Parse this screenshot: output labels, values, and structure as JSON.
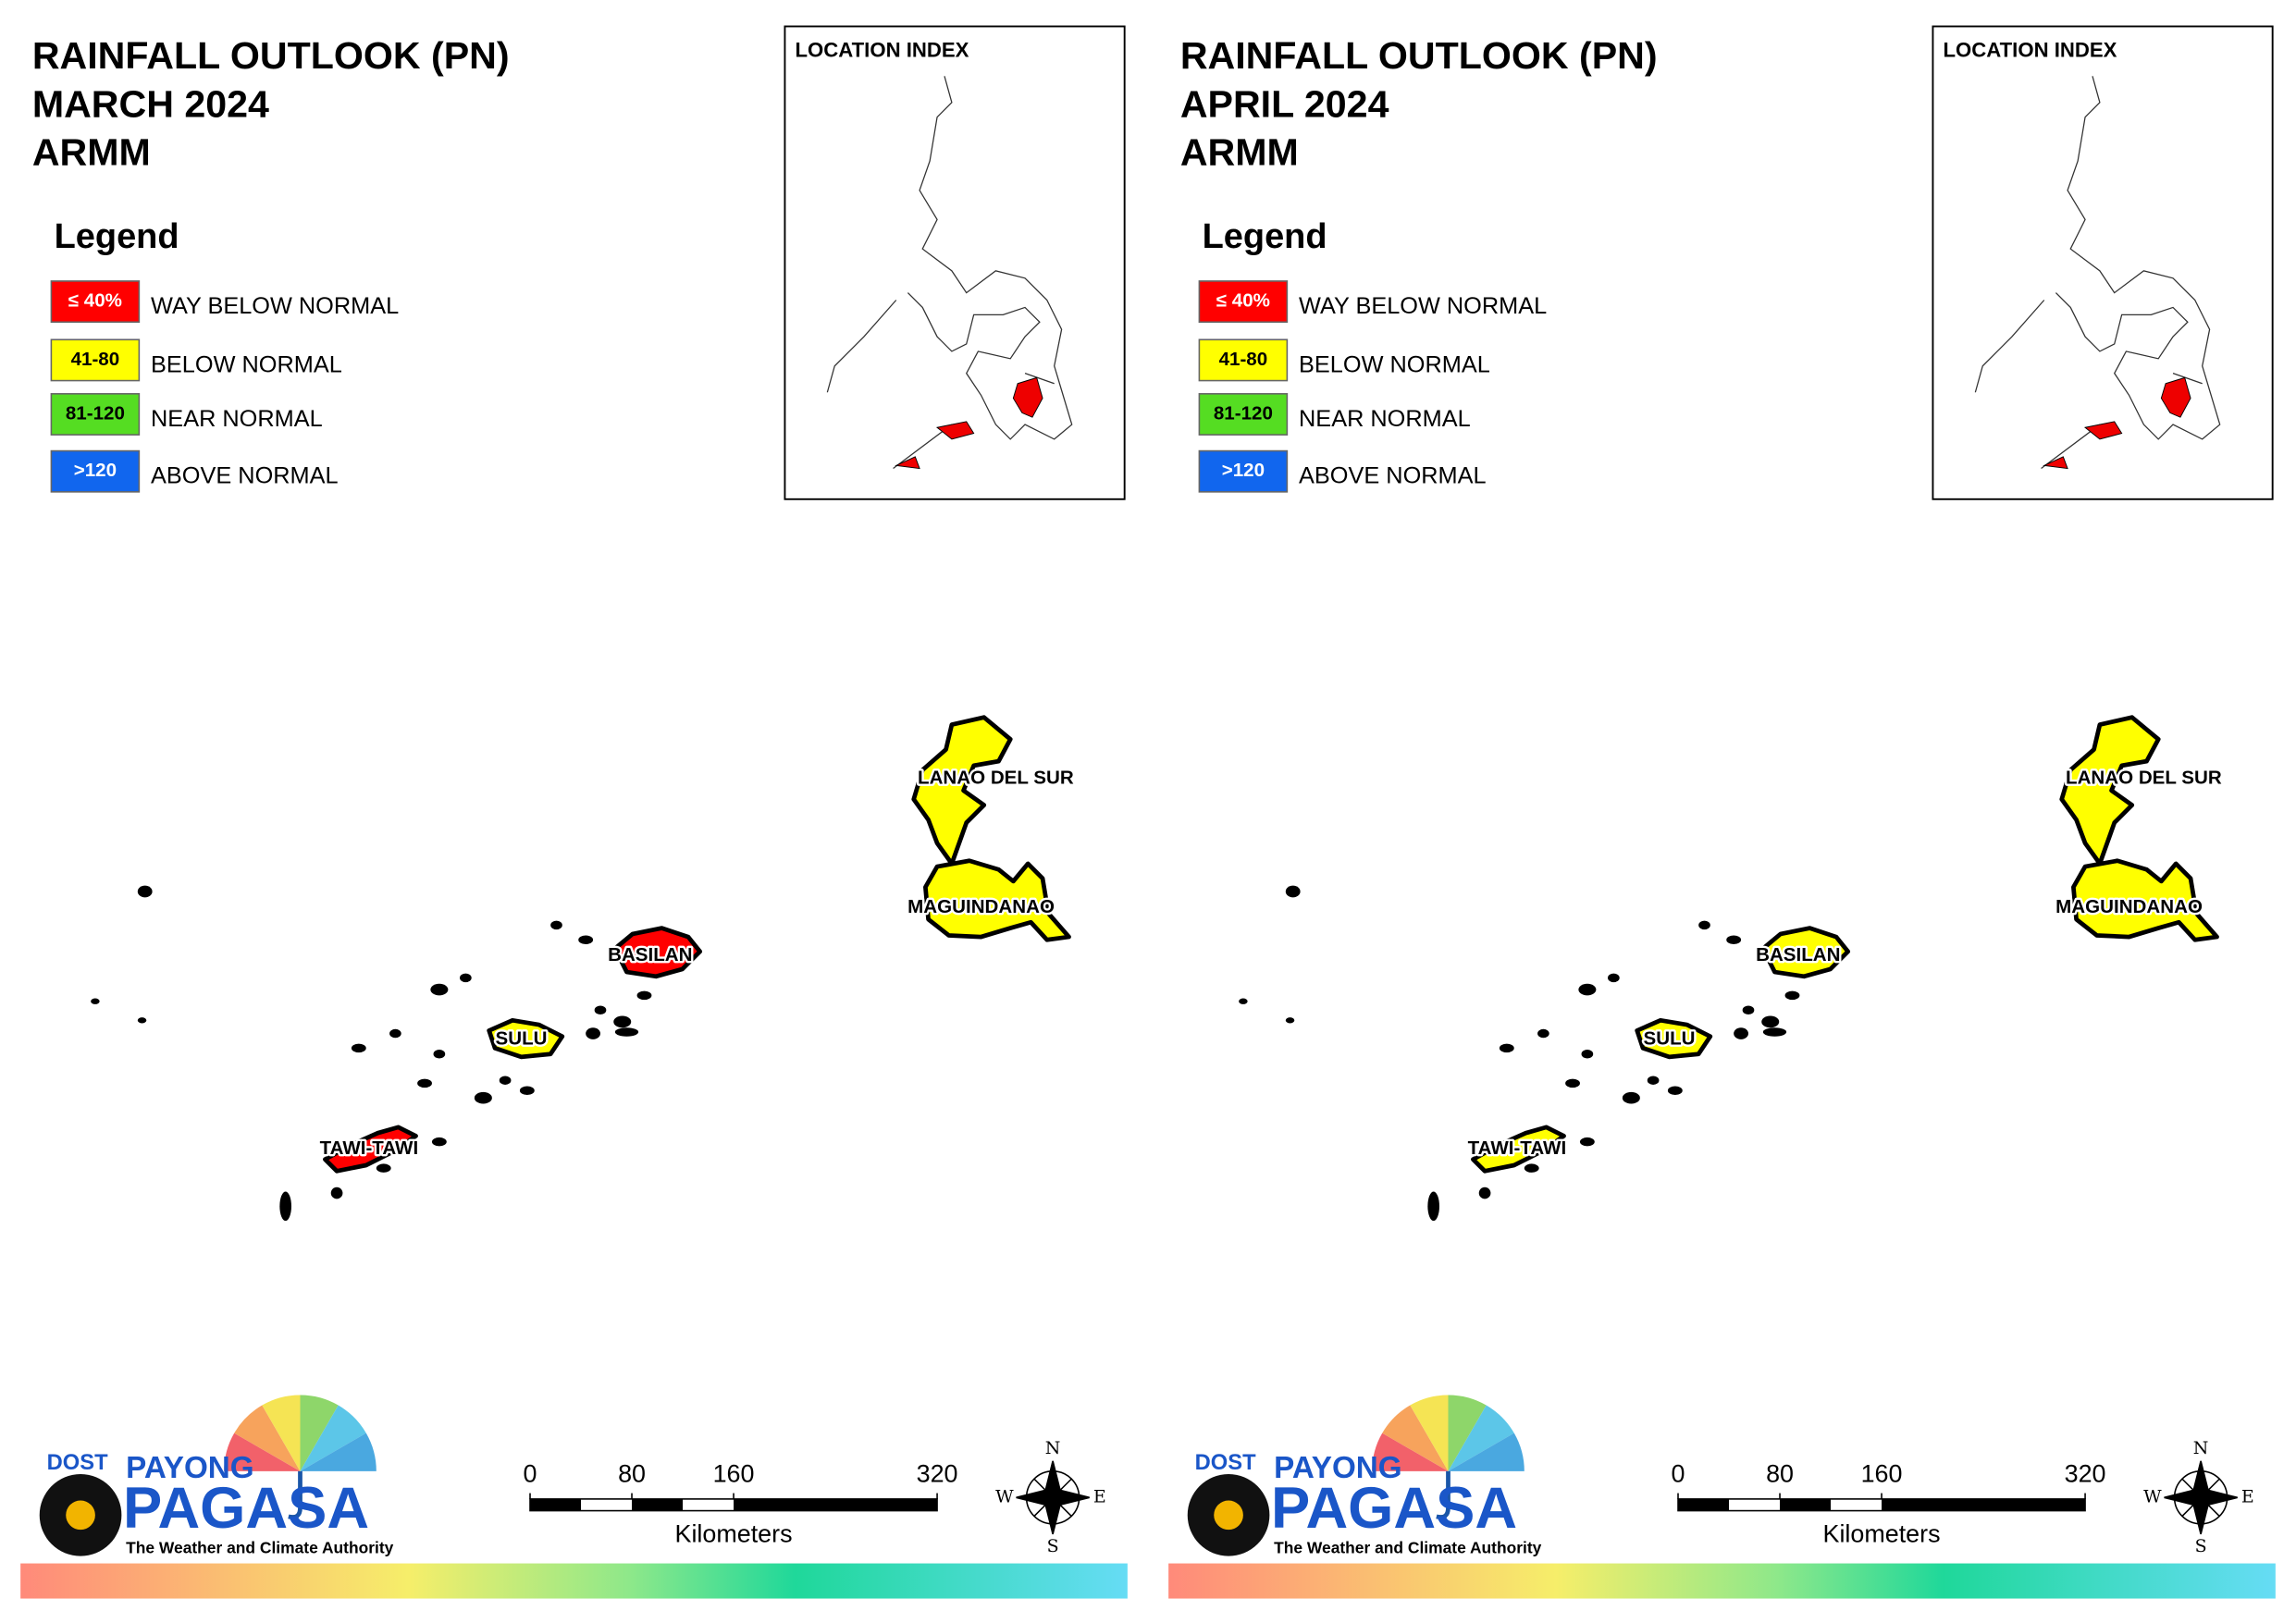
{
  "panels": [
    {
      "title": [
        "RAINFALL OUTLOOK (PN)",
        "MARCH 2024",
        "ARMM"
      ],
      "provinces": [
        {
          "name": "LANAO DEL SUR",
          "color": "#ffff00"
        },
        {
          "name": "MAGUINDANAO",
          "color": "#ffff00"
        },
        {
          "name": "BASILAN",
          "color": "#ff0000"
        },
        {
          "name": "SULU",
          "color": "#ffff00"
        },
        {
          "name": "TAWI-TAWI",
          "color": "#ff0000"
        }
      ]
    },
    {
      "title": [
        "RAINFALL OUTLOOK (PN)",
        "APRIL 2024",
        "ARMM"
      ],
      "provinces": [
        {
          "name": "LANAO DEL SUR",
          "color": "#ffff00"
        },
        {
          "name": "MAGUINDANAO",
          "color": "#ffff00"
        },
        {
          "name": "BASILAN",
          "color": "#ffff00"
        },
        {
          "name": "SULU",
          "color": "#ffff00"
        },
        {
          "name": "TAWI-TAWI",
          "color": "#ffff00"
        }
      ]
    }
  ],
  "location_index": "LOCATION INDEX",
  "legend": {
    "title": "Legend",
    "items": [
      {
        "range": "≤ 40%",
        "label": "WAY BELOW NORMAL",
        "color": "#ff0000",
        "text_color": "#ffffff"
      },
      {
        "range": "41-80",
        "label": "BELOW NORMAL",
        "color": "#ffff00",
        "text_color": "#000000"
      },
      {
        "range": "81-120",
        "label": "NEAR NORMAL",
        "color": "#55dd22",
        "text_color": "#000000"
      },
      {
        "range": ">120",
        "label": "ABOVE NORMAL",
        "color": "#1166ee",
        "text_color": "#ffffff"
      }
    ]
  },
  "scale_bar": {
    "ticks": [
      0,
      80,
      160,
      320
    ],
    "unit": "Kilometers"
  },
  "compass": {
    "n": "N",
    "e": "E",
    "s": "S",
    "w": "W"
  },
  "logo": {
    "agency": "DOST",
    "name": "PAYONG",
    "brand": "PAGASA",
    "tagline": "The Weather and Climate Authority"
  }
}
